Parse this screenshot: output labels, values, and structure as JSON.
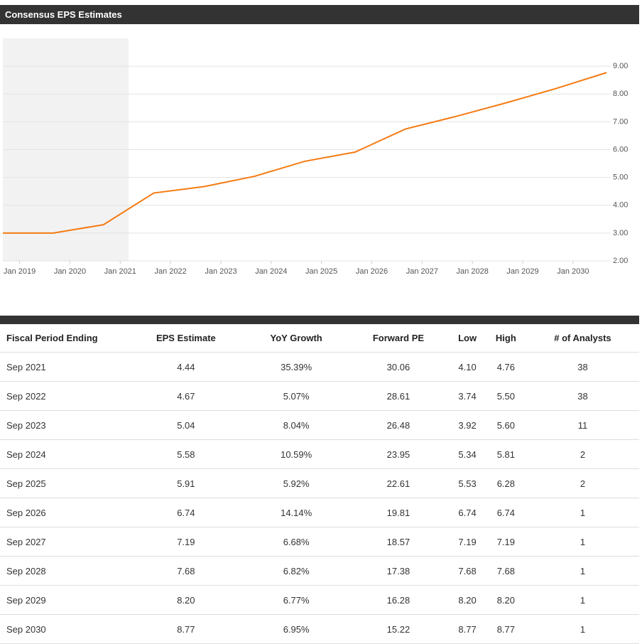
{
  "header": {
    "title": "Consensus EPS Estimates"
  },
  "chart_data": {
    "type": "line",
    "x": [
      "2018-09",
      "2019-09",
      "2020-09",
      "2021-09",
      "2022-09",
      "2023-09",
      "2024-09",
      "2025-09",
      "2026-09",
      "2027-09",
      "2028-09",
      "2029-09",
      "2030-09"
    ],
    "values": [
      3.0,
      3.0,
      3.3,
      4.44,
      4.67,
      5.04,
      5.58,
      5.91,
      6.74,
      7.19,
      7.68,
      8.2,
      8.77
    ],
    "color": "#f47b12",
    "xlim": [
      "2018-09",
      "2030-10"
    ],
    "xticks": [
      {
        "value": "2019-01",
        "label": "Jan 2019"
      },
      {
        "value": "2020-01",
        "label": "Jan 2020"
      },
      {
        "value": "2021-01",
        "label": "Jan 2021"
      },
      {
        "value": "2022-01",
        "label": "Jan 2022"
      },
      {
        "value": "2023-01",
        "label": "Jan 2023"
      },
      {
        "value": "2024-01",
        "label": "Jan 2024"
      },
      {
        "value": "2025-01",
        "label": "Jan 2025"
      },
      {
        "value": "2026-01",
        "label": "Jan 2026"
      },
      {
        "value": "2027-01",
        "label": "Jan 2027"
      },
      {
        "value": "2028-01",
        "label": "Jan 2028"
      },
      {
        "value": "2029-01",
        "label": "Jan 2029"
      },
      {
        "value": "2030-01",
        "label": "Jan 2030"
      }
    ],
    "ylim": [
      2,
      10
    ],
    "yticks": [
      {
        "value": 2,
        "label": "2.00"
      },
      {
        "value": 3,
        "label": "3.00"
      },
      {
        "value": 4,
        "label": "4.00"
      },
      {
        "value": 5,
        "label": "5.00"
      },
      {
        "value": 6,
        "label": "6.00"
      },
      {
        "value": 7,
        "label": "7.00"
      },
      {
        "value": 8,
        "label": "8.00"
      },
      {
        "value": 9,
        "label": "9.00"
      }
    ],
    "grid": true,
    "shaded_range": [
      "2018-09",
      "2021-03"
    ]
  },
  "table": {
    "columns": [
      "Fiscal Period Ending",
      "EPS Estimate",
      "YoY Growth",
      "Forward PE",
      "Low",
      "High",
      "# of Analysts"
    ],
    "rows": [
      [
        "Sep 2021",
        "4.44",
        "35.39%",
        "30.06",
        "4.10",
        "4.76",
        "38"
      ],
      [
        "Sep 2022",
        "4.67",
        "5.07%",
        "28.61",
        "3.74",
        "5.50",
        "38"
      ],
      [
        "Sep 2023",
        "5.04",
        "8.04%",
        "26.48",
        "3.92",
        "5.60",
        "11"
      ],
      [
        "Sep 2024",
        "5.58",
        "10.59%",
        "23.95",
        "5.34",
        "5.81",
        "2"
      ],
      [
        "Sep 2025",
        "5.91",
        "5.92%",
        "22.61",
        "5.53",
        "6.28",
        "2"
      ],
      [
        "Sep 2026",
        "6.74",
        "14.14%",
        "19.81",
        "6.74",
        "6.74",
        "1"
      ],
      [
        "Sep 2027",
        "7.19",
        "6.68%",
        "18.57",
        "7.19",
        "7.19",
        "1"
      ],
      [
        "Sep 2028",
        "7.68",
        "6.82%",
        "17.38",
        "7.68",
        "7.68",
        "1"
      ],
      [
        "Sep 2029",
        "8.20",
        "6.77%",
        "16.28",
        "8.20",
        "8.20",
        "1"
      ],
      [
        "Sep 2030",
        "8.77",
        "6.95%",
        "15.22",
        "8.77",
        "8.77",
        "1"
      ]
    ]
  }
}
